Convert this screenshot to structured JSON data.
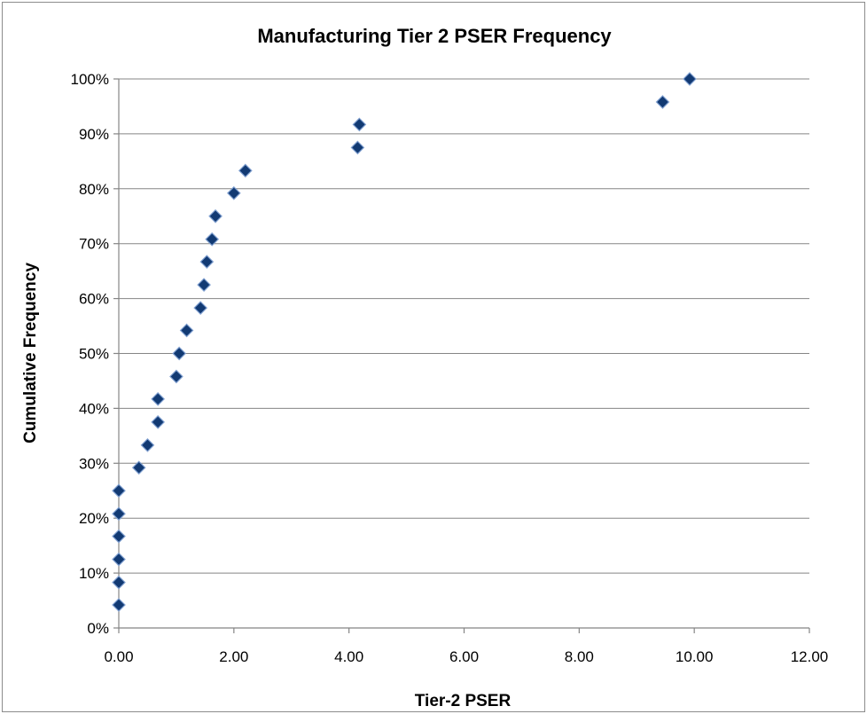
{
  "chart_data": {
    "type": "scatter",
    "title": "Manufacturing Tier 2 PSER Frequency",
    "xlabel": "Tier-2 PSER",
    "ylabel": "Cumulative Frequency",
    "xlim": [
      0,
      12
    ],
    "ylim": [
      0,
      1
    ],
    "x_ticks": [
      "0.00",
      "2.00",
      "4.00",
      "6.00",
      "8.00",
      "10.00",
      "12.00"
    ],
    "y_ticks": [
      "0%",
      "10%",
      "20%",
      "30%",
      "40%",
      "50%",
      "60%",
      "70%",
      "80%",
      "90%",
      "100%"
    ],
    "grid": "horizontal",
    "legend": "none",
    "marker": "diamond",
    "marker_color": "#123a73",
    "points": [
      {
        "x": 0.0,
        "y": 0.042
      },
      {
        "x": 0.0,
        "y": 0.083
      },
      {
        "x": 0.0,
        "y": 0.125
      },
      {
        "x": 0.0,
        "y": 0.167
      },
      {
        "x": 0.0,
        "y": 0.208
      },
      {
        "x": 0.0,
        "y": 0.25
      },
      {
        "x": 0.35,
        "y": 0.292
      },
      {
        "x": 0.5,
        "y": 0.333
      },
      {
        "x": 0.68,
        "y": 0.375
      },
      {
        "x": 0.68,
        "y": 0.417
      },
      {
        "x": 1.0,
        "y": 0.458
      },
      {
        "x": 1.05,
        "y": 0.5
      },
      {
        "x": 1.18,
        "y": 0.542
      },
      {
        "x": 1.42,
        "y": 0.583
      },
      {
        "x": 1.48,
        "y": 0.625
      },
      {
        "x": 1.53,
        "y": 0.667
      },
      {
        "x": 1.62,
        "y": 0.708
      },
      {
        "x": 1.68,
        "y": 0.75
      },
      {
        "x": 2.0,
        "y": 0.792
      },
      {
        "x": 2.2,
        "y": 0.833
      },
      {
        "x": 4.15,
        "y": 0.875
      },
      {
        "x": 4.18,
        "y": 0.917
      },
      {
        "x": 9.45,
        "y": 0.958
      },
      {
        "x": 9.92,
        "y": 1.0
      }
    ]
  }
}
